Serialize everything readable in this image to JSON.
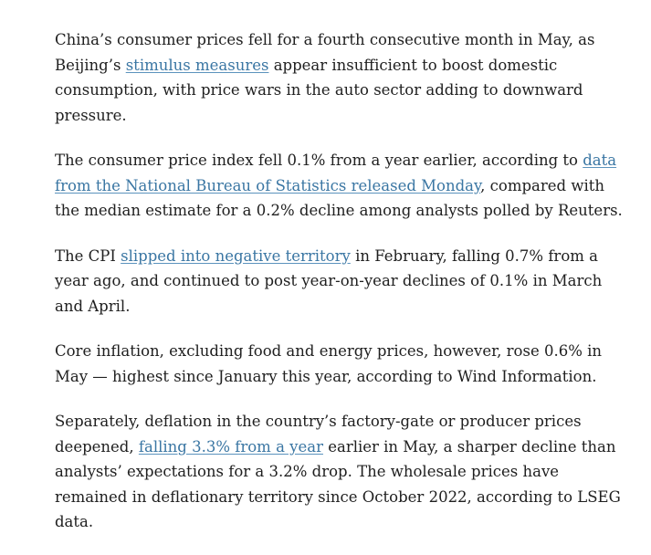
{
  "article": {
    "p1": {
      "t1": "China’s consumer prices fell for a fourth consecutive month in May, as Beijing’s ",
      "link": "stimulus measures",
      "t2": " appear insufficient to boost domestic consumption, with price wars in the auto sector adding to downward pressure."
    },
    "p2": {
      "t1": "The consumer price index fell 0.1% from a year earlier, according to ",
      "link": "data from the National Bureau of Statistics released Monday",
      "t2": ", compared with the median estimate for a 0.2% decline among analysts polled by Reuters."
    },
    "p3": {
      "t1": "The CPI ",
      "link": "slipped into negative territory",
      "t2": " in February, falling 0.7% from a year ago, and continued to post year-on-year declines of 0.1% in March and April."
    },
    "p4": {
      "text": "Core inflation, excluding food and energy prices, however, rose 0.6% in May — highest since January this year, according to Wind Information."
    },
    "p5": {
      "t1": "Separately, deflation in the country’s factory-gate or producer prices deepened, ",
      "link": "falling 3.3% from a year",
      "t2": " earlier in May, a sharper decline than analysts’ expectations for a 3.2% drop. The wholesale prices have remained in deflationary territory since October 2022, according to LSEG data."
    }
  },
  "colors": {
    "text": "#202020",
    "link": "#3a76a3",
    "background": "#ffffff"
  }
}
